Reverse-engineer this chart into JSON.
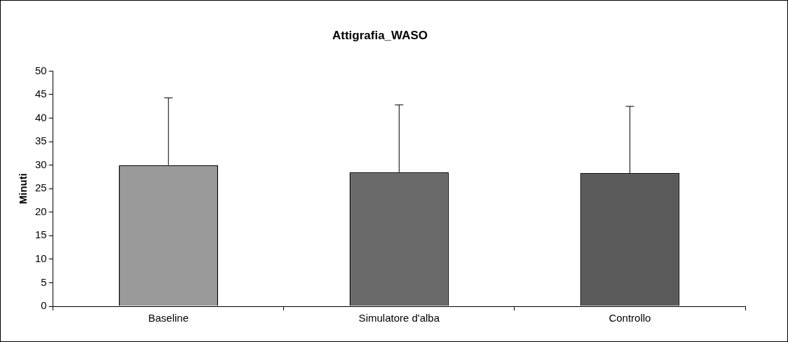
{
  "chart_data": {
    "type": "bar",
    "title": "Attigrafia_WASO",
    "ylabel": "Minuti",
    "categories": [
      "Baseline",
      "Simulatore d'alba",
      "Controllo"
    ],
    "values": [
      30,
      28.5,
      28.3
    ],
    "colors": [
      "#9a9a9a",
      "#6a6a6a",
      "#5a5a5a"
    ],
    "errors": [
      [
        30,
        44.3
      ],
      [
        28.5,
        42.8
      ],
      [
        28.3,
        42.5
      ]
    ],
    "ylim": [
      0,
      50
    ],
    "yticks": [
      0,
      5,
      10,
      15,
      20,
      25,
      30,
      35,
      40,
      45,
      50
    ],
    "grid": false,
    "legend": false
  }
}
